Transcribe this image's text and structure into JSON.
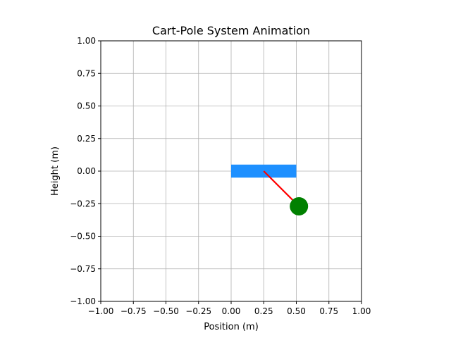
{
  "chart_data": {
    "type": "scatter",
    "title": "Cart-Pole System Animation",
    "xlabel": "Position (m)",
    "ylabel": "Height (m)",
    "xlim": [
      -1.0,
      1.0
    ],
    "ylim": [
      -1.0,
      1.0
    ],
    "grid": true,
    "x_ticks": [
      "−1.00",
      "−0.75",
      "−0.50",
      "−0.25",
      "0.00",
      "0.25",
      "0.50",
      "0.75",
      "1.00"
    ],
    "y_ticks": [
      "1.00",
      "0.75",
      "0.50",
      "0.25",
      "0.00",
      "−0.25",
      "−0.50",
      "−0.75",
      "−1.00"
    ],
    "x_tick_values": [
      -1.0,
      -0.75,
      -0.5,
      -0.25,
      0.0,
      0.25,
      0.5,
      0.75,
      1.0
    ],
    "y_tick_values": [
      1.0,
      0.75,
      0.5,
      0.25,
      0.0,
      -0.25,
      -0.5,
      -0.75,
      -1.0
    ],
    "cart": {
      "x_min": 0.0,
      "x_max": 0.5,
      "y_min": -0.05,
      "y_max": 0.05,
      "color": "#1e90ff"
    },
    "pole": {
      "x": [
        0.25,
        0.52
      ],
      "y": [
        0.0,
        -0.27
      ],
      "color": "#ff0000"
    },
    "bob": {
      "x": 0.52,
      "y": -0.27,
      "color": "#008000"
    }
  },
  "colors": {
    "grid": "#b0b0b0",
    "axes": "#000000",
    "background": "#ffffff"
  }
}
